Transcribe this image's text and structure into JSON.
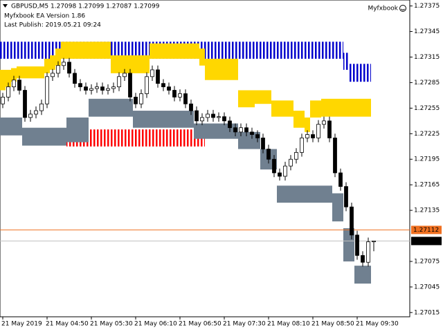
{
  "chart_data": {
    "type": "candlestick",
    "title": "GBPUSD,M5  1.27098 1.27099 1.27087 1.27099",
    "subtitle": "Myfxbook EA Version 1.86",
    "annotation": "Last Publish: 2019.05.21 09:24",
    "brand": "Myfxbook",
    "categories": [
      "21 May 2019",
      null,
      null,
      null,
      null,
      null,
      null,
      null,
      "21 May 04:50",
      null,
      null,
      null,
      null,
      null,
      null,
      null,
      "21 May 05:30",
      null,
      null,
      null,
      null,
      null,
      null,
      null,
      "21 May 06:10",
      null,
      null,
      null,
      null,
      null,
      null,
      null,
      "21 May 06:50",
      null,
      null,
      null,
      null,
      null,
      null,
      null,
      "21 May 07:30",
      null,
      null,
      null,
      null,
      null,
      null,
      null,
      "21 May 08:10",
      null,
      null,
      null,
      null,
      null,
      null,
      null,
      "21 May 08:50",
      null,
      null,
      null,
      null,
      null,
      null,
      null,
      "21 May 09:30",
      null,
      null,
      null
    ],
    "ylim": [
      1.2701,
      1.27382
    ],
    "yticks": [
      1.27375,
      1.27345,
      1.27315,
      1.27285,
      1.27255,
      1.27225,
      1.27195,
      1.27165,
      1.27135,
      1.27075,
      1.27045,
      1.27015
    ],
    "up_color": "#ffffff",
    "down_color": "#000000",
    "open": [
      1.2726,
      1.27268,
      1.2728,
      1.27288,
      1.27276,
      1.27244,
      1.27248,
      1.27252,
      1.2726,
      1.27292,
      1.27296,
      1.27305,
      1.27309,
      1.27296,
      1.27284,
      1.2728,
      1.27276,
      1.27278,
      1.2728,
      1.27276,
      1.27278,
      1.2728,
      1.27292,
      1.27296,
      1.27268,
      1.2726,
      1.27272,
      1.27292,
      1.273,
      1.27284,
      1.2728,
      1.27276,
      1.27268,
      1.27272,
      1.2726,
      1.27252,
      1.2724,
      1.27244,
      1.27248,
      1.27244,
      1.27245,
      1.2724,
      1.27232,
      1.27227,
      1.27232,
      1.27227,
      1.27224,
      1.2722,
      1.27207,
      1.27195,
      1.27179,
      1.27175,
      1.27187,
      1.27195,
      1.27203,
      1.2722,
      1.27224,
      1.2722,
      1.27236,
      1.2724,
      1.2722,
      1.27179,
      1.27163,
      1.27139,
      1.27106,
      1.27082,
      1.27074,
      1.27098
    ],
    "high": [
      1.27273,
      1.27285,
      1.27293,
      1.27293,
      1.27281,
      1.27253,
      1.27257,
      1.27265,
      1.27297,
      1.27301,
      1.2731,
      1.27314,
      1.27314,
      1.27301,
      1.27289,
      1.27285,
      1.27283,
      1.27285,
      1.27285,
      1.27283,
      1.27285,
      1.27297,
      1.27301,
      1.27301,
      1.27273,
      1.27277,
      1.27297,
      1.27305,
      1.27305,
      1.27289,
      1.27285,
      1.27281,
      1.27277,
      1.27277,
      1.27265,
      1.27257,
      1.27249,
      1.27253,
      1.27253,
      1.2725,
      1.2725,
      1.27245,
      1.27237,
      1.27237,
      1.27237,
      1.27232,
      1.27229,
      1.27225,
      1.27212,
      1.272,
      1.27184,
      1.27192,
      1.272,
      1.27208,
      1.27225,
      1.27229,
      1.27229,
      1.27241,
      1.27245,
      1.27245,
      1.27225,
      1.27184,
      1.27168,
      1.27144,
      1.27111,
      1.27087,
      1.27103,
      1.27099
    ],
    "low": [
      1.27255,
      1.27263,
      1.27275,
      1.27271,
      1.27239,
      1.27239,
      1.27243,
      1.27247,
      1.27255,
      1.27287,
      1.27291,
      1.273,
      1.27291,
      1.27279,
      1.27275,
      1.27271,
      1.27271,
      1.27273,
      1.27271,
      1.27271,
      1.27273,
      1.27275,
      1.27287,
      1.27263,
      1.27255,
      1.27255,
      1.27267,
      1.27287,
      1.27279,
      1.27275,
      1.27271,
      1.27263,
      1.27263,
      1.27255,
      1.27247,
      1.27235,
      1.27235,
      1.27239,
      1.27239,
      1.27239,
      1.27235,
      1.27227,
      1.27222,
      1.27222,
      1.27222,
      1.27219,
      1.27215,
      1.27202,
      1.2719,
      1.27174,
      1.2717,
      1.2717,
      1.27182,
      1.2719,
      1.27198,
      1.27215,
      1.27215,
      1.27215,
      1.27231,
      1.27215,
      1.27174,
      1.27158,
      1.27134,
      1.27101,
      1.27077,
      1.27069,
      1.27069,
      1.27087
    ],
    "close": [
      1.27268,
      1.2728,
      1.27288,
      1.27276,
      1.27244,
      1.27248,
      1.27252,
      1.2726,
      1.27292,
      1.27296,
      1.27305,
      1.27309,
      1.27296,
      1.27284,
      1.2728,
      1.27276,
      1.27278,
      1.2728,
      1.27276,
      1.27278,
      1.2728,
      1.27292,
      1.27296,
      1.27268,
      1.2726,
      1.27272,
      1.27292,
      1.273,
      1.27284,
      1.2728,
      1.27276,
      1.27268,
      1.27272,
      1.2726,
      1.27252,
      1.2724,
      1.27244,
      1.27248,
      1.27244,
      1.27245,
      1.2724,
      1.27232,
      1.27227,
      1.27232,
      1.27227,
      1.27224,
      1.2722,
      1.27207,
      1.27195,
      1.27179,
      1.27175,
      1.27187,
      1.27195,
      1.27203,
      1.2722,
      1.27224,
      1.2722,
      1.27236,
      1.2724,
      1.2722,
      1.27179,
      1.27163,
      1.27139,
      1.27106,
      1.27082,
      1.27074,
      1.27098,
      1.27099
    ],
    "bands": [
      {
        "color": "#0000cc",
        "hatch": true,
        "upper": [
          1.27333,
          1.27333,
          1.27333,
          1.27333,
          1.27333,
          1.27333,
          1.27333,
          1.27333,
          1.27333,
          1.27333,
          1.27333,
          1.27333,
          1.27333,
          1.27333,
          1.27333,
          1.27333,
          1.27333,
          1.27333,
          1.27333,
          1.27333,
          1.27333,
          1.27333,
          1.27333,
          1.27333,
          1.27333,
          1.27333,
          1.27333,
          1.27333,
          1.27333,
          1.27333,
          1.27333,
          1.27333,
          1.27333,
          1.27333,
          1.27333,
          1.27333,
          1.27333,
          1.27333,
          1.27333,
          1.27333,
          1.27333,
          1.27333,
          1.27333,
          1.27333,
          1.27333,
          1.27333,
          1.27333,
          1.27333,
          1.27333,
          1.27333,
          1.27333,
          1.27333,
          1.27333,
          1.27333,
          1.27333,
          1.27333,
          1.27333,
          1.27333,
          1.27333,
          1.27333,
          1.27333,
          1.27333,
          1.2732,
          1.27307,
          1.27307,
          1.27307,
          1.27307,
          null
        ],
        "lower": [
          1.27313,
          1.27313,
          1.27313,
          1.27313,
          1.27313,
          1.27313,
          1.27313,
          1.27313,
          1.27313,
          1.27313,
          1.27313,
          1.27313,
          1.27313,
          1.27313,
          1.27313,
          1.27313,
          1.27313,
          1.27313,
          1.27313,
          1.27313,
          1.27313,
          1.27313,
          1.27313,
          1.27313,
          1.27313,
          1.27313,
          1.27313,
          1.27313,
          1.27313,
          1.27313,
          1.27313,
          1.27313,
          1.27313,
          1.27313,
          1.27313,
          1.27313,
          1.27313,
          1.27313,
          1.27313,
          1.27313,
          1.27313,
          1.27313,
          1.27313,
          1.27313,
          1.27313,
          1.27313,
          1.27313,
          1.27313,
          1.27313,
          1.27313,
          1.27313,
          1.27313,
          1.27313,
          1.27313,
          1.27313,
          1.27313,
          1.27313,
          1.27313,
          1.27313,
          1.27313,
          1.27313,
          1.27313,
          1.273,
          1.27286,
          1.27286,
          1.27286,
          1.27286,
          null
        ]
      },
      {
        "color": "#ffd700",
        "hatch": false,
        "upper": [
          1.273,
          1.273,
          1.27302,
          1.27304,
          1.27304,
          1.27304,
          1.27304,
          1.27304,
          1.27313,
          1.27317,
          1.27325,
          1.27333,
          1.27333,
          1.27333,
          1.27333,
          1.27333,
          1.27333,
          1.27333,
          1.27333,
          1.27333,
          1.27317,
          1.27317,
          1.27317,
          1.27317,
          1.27317,
          1.27317,
          1.27317,
          1.27331,
          1.27331,
          1.27331,
          1.27331,
          1.27331,
          1.27331,
          1.27331,
          1.27331,
          1.27331,
          1.27325,
          1.27313,
          1.27313,
          1.27313,
          1.27313,
          1.27313,
          1.27313,
          1.27276,
          1.27276,
          1.27276,
          1.27276,
          1.27276,
          1.27276,
          1.27264,
          1.27264,
          1.27264,
          1.27264,
          1.27252,
          1.27252,
          1.27244,
          1.27264,
          1.27264,
          1.27266,
          1.27266,
          1.27266,
          1.27266,
          1.27266,
          1.27266,
          1.27266,
          1.27266,
          1.27266,
          null
        ],
        "lower": [
          1.27276,
          1.2728,
          1.27286,
          1.2729,
          1.2729,
          1.2729,
          1.2729,
          1.2729,
          1.27296,
          1.273,
          1.27305,
          1.27313,
          1.27313,
          1.27313,
          1.27313,
          1.27313,
          1.27313,
          1.27313,
          1.27313,
          1.27313,
          1.27296,
          1.27296,
          1.27296,
          1.27296,
          1.27296,
          1.27296,
          1.27296,
          1.27313,
          1.27313,
          1.27313,
          1.27313,
          1.27313,
          1.27313,
          1.27313,
          1.27313,
          1.27313,
          1.27305,
          1.27288,
          1.27288,
          1.27288,
          1.27288,
          1.27288,
          1.27288,
          1.27256,
          1.27256,
          1.27256,
          1.2726,
          1.2726,
          1.2726,
          1.27245,
          1.27245,
          1.27245,
          1.27245,
          1.27232,
          1.27232,
          1.27227,
          1.27244,
          1.27244,
          1.27245,
          1.27245,
          1.27245,
          1.27245,
          1.27245,
          1.27245,
          1.27245,
          1.27245,
          1.27245,
          null
        ]
      },
      {
        "color": "#ff0000",
        "hatch": true,
        "upper": [
          null,
          null,
          null,
          null,
          null,
          null,
          null,
          null,
          null,
          null,
          null,
          null,
          1.2723,
          1.2723,
          1.2723,
          1.2723,
          1.2723,
          1.2723,
          1.2723,
          1.2723,
          1.2723,
          1.2723,
          1.2723,
          1.2723,
          1.2723,
          1.2723,
          1.2723,
          1.2723,
          1.2723,
          1.2723,
          1.2723,
          1.2723,
          1.2723,
          1.2723,
          1.2723,
          1.2723,
          1.2723,
          null,
          null,
          null,
          null,
          null,
          null,
          null,
          null,
          null,
          null,
          null,
          null,
          null,
          null,
          null,
          null,
          null,
          null,
          null,
          null,
          null,
          null,
          null,
          null,
          null,
          null,
          null,
          null,
          null,
          null,
          null
        ],
        "lower": [
          null,
          null,
          null,
          null,
          null,
          null,
          null,
          null,
          null,
          null,
          null,
          null,
          1.2721,
          1.2721,
          1.2721,
          1.2721,
          1.2721,
          1.2721,
          1.2721,
          1.2721,
          1.2721,
          1.2721,
          1.2721,
          1.2721,
          1.2721,
          1.2721,
          1.2721,
          1.2721,
          1.2721,
          1.2721,
          1.2721,
          1.2721,
          1.2721,
          1.2721,
          1.2721,
          1.2721,
          1.2721,
          null,
          null,
          null,
          null,
          null,
          null,
          null,
          null,
          null,
          null,
          null,
          null,
          null,
          null,
          null,
          null,
          null,
          null,
          null,
          null,
          null,
          null,
          null,
          null,
          null,
          null,
          null,
          null,
          null,
          null,
          null
        ]
      },
      {
        "color": "#708090",
        "hatch": false,
        "upper": [
          1.27244,
          1.27244,
          1.27244,
          1.27244,
          1.27232,
          1.27232,
          1.27232,
          1.27232,
          1.27232,
          1.27232,
          1.27232,
          1.27232,
          1.27244,
          1.27244,
          1.27244,
          1.27244,
          1.27266,
          1.27266,
          1.27266,
          1.27266,
          1.27266,
          1.27266,
          1.27266,
          1.27266,
          1.27252,
          1.27252,
          1.27252,
          1.27252,
          1.27252,
          1.27252,
          1.27252,
          1.27252,
          1.27252,
          1.27252,
          1.27252,
          1.27237,
          1.27237,
          1.27237,
          1.27237,
          1.27237,
          1.27237,
          1.27237,
          1.27237,
          1.27227,
          1.27227,
          1.27227,
          1.27227,
          1.27207,
          1.27207,
          1.27207,
          1.27164,
          1.27164,
          1.27164,
          1.27164,
          1.27164,
          1.27164,
          1.27164,
          1.27164,
          1.27164,
          1.27164,
          1.27155,
          1.27155,
          1.27114,
          1.27114,
          1.2707,
          1.2707,
          1.2707,
          null
        ],
        "lower": [
          1.27223,
          1.27223,
          1.27223,
          1.27223,
          1.27211,
          1.27211,
          1.27211,
          1.27211,
          1.27211,
          1.27211,
          1.27211,
          1.27211,
          1.27215,
          1.27215,
          1.27215,
          1.27215,
          1.27245,
          1.27245,
          1.27245,
          1.27245,
          1.27245,
          1.27245,
          1.27245,
          1.27245,
          1.27232,
          1.27232,
          1.27232,
          1.27232,
          1.27232,
          1.27232,
          1.27232,
          1.27232,
          1.27232,
          1.27232,
          1.27232,
          1.27219,
          1.27219,
          1.27219,
          1.27219,
          1.27219,
          1.27219,
          1.27219,
          1.27219,
          1.27207,
          1.27207,
          1.27207,
          1.27207,
          1.27183,
          1.27183,
          1.27183,
          1.27144,
          1.27144,
          1.27144,
          1.27144,
          1.27144,
          1.27144,
          1.27144,
          1.27144,
          1.27144,
          1.27144,
          1.27122,
          1.27122,
          1.27075,
          1.27075,
          1.27049,
          1.27049,
          1.27049,
          null
        ]
      }
    ],
    "price_lines": [
      {
        "value": 1.27112,
        "color": "#f07020",
        "text_color": "#ffffff"
      },
      {
        "value": 1.27099,
        "color": "#c0c0c0",
        "text_color": "#ffffff",
        "box": "#000000"
      }
    ]
  }
}
